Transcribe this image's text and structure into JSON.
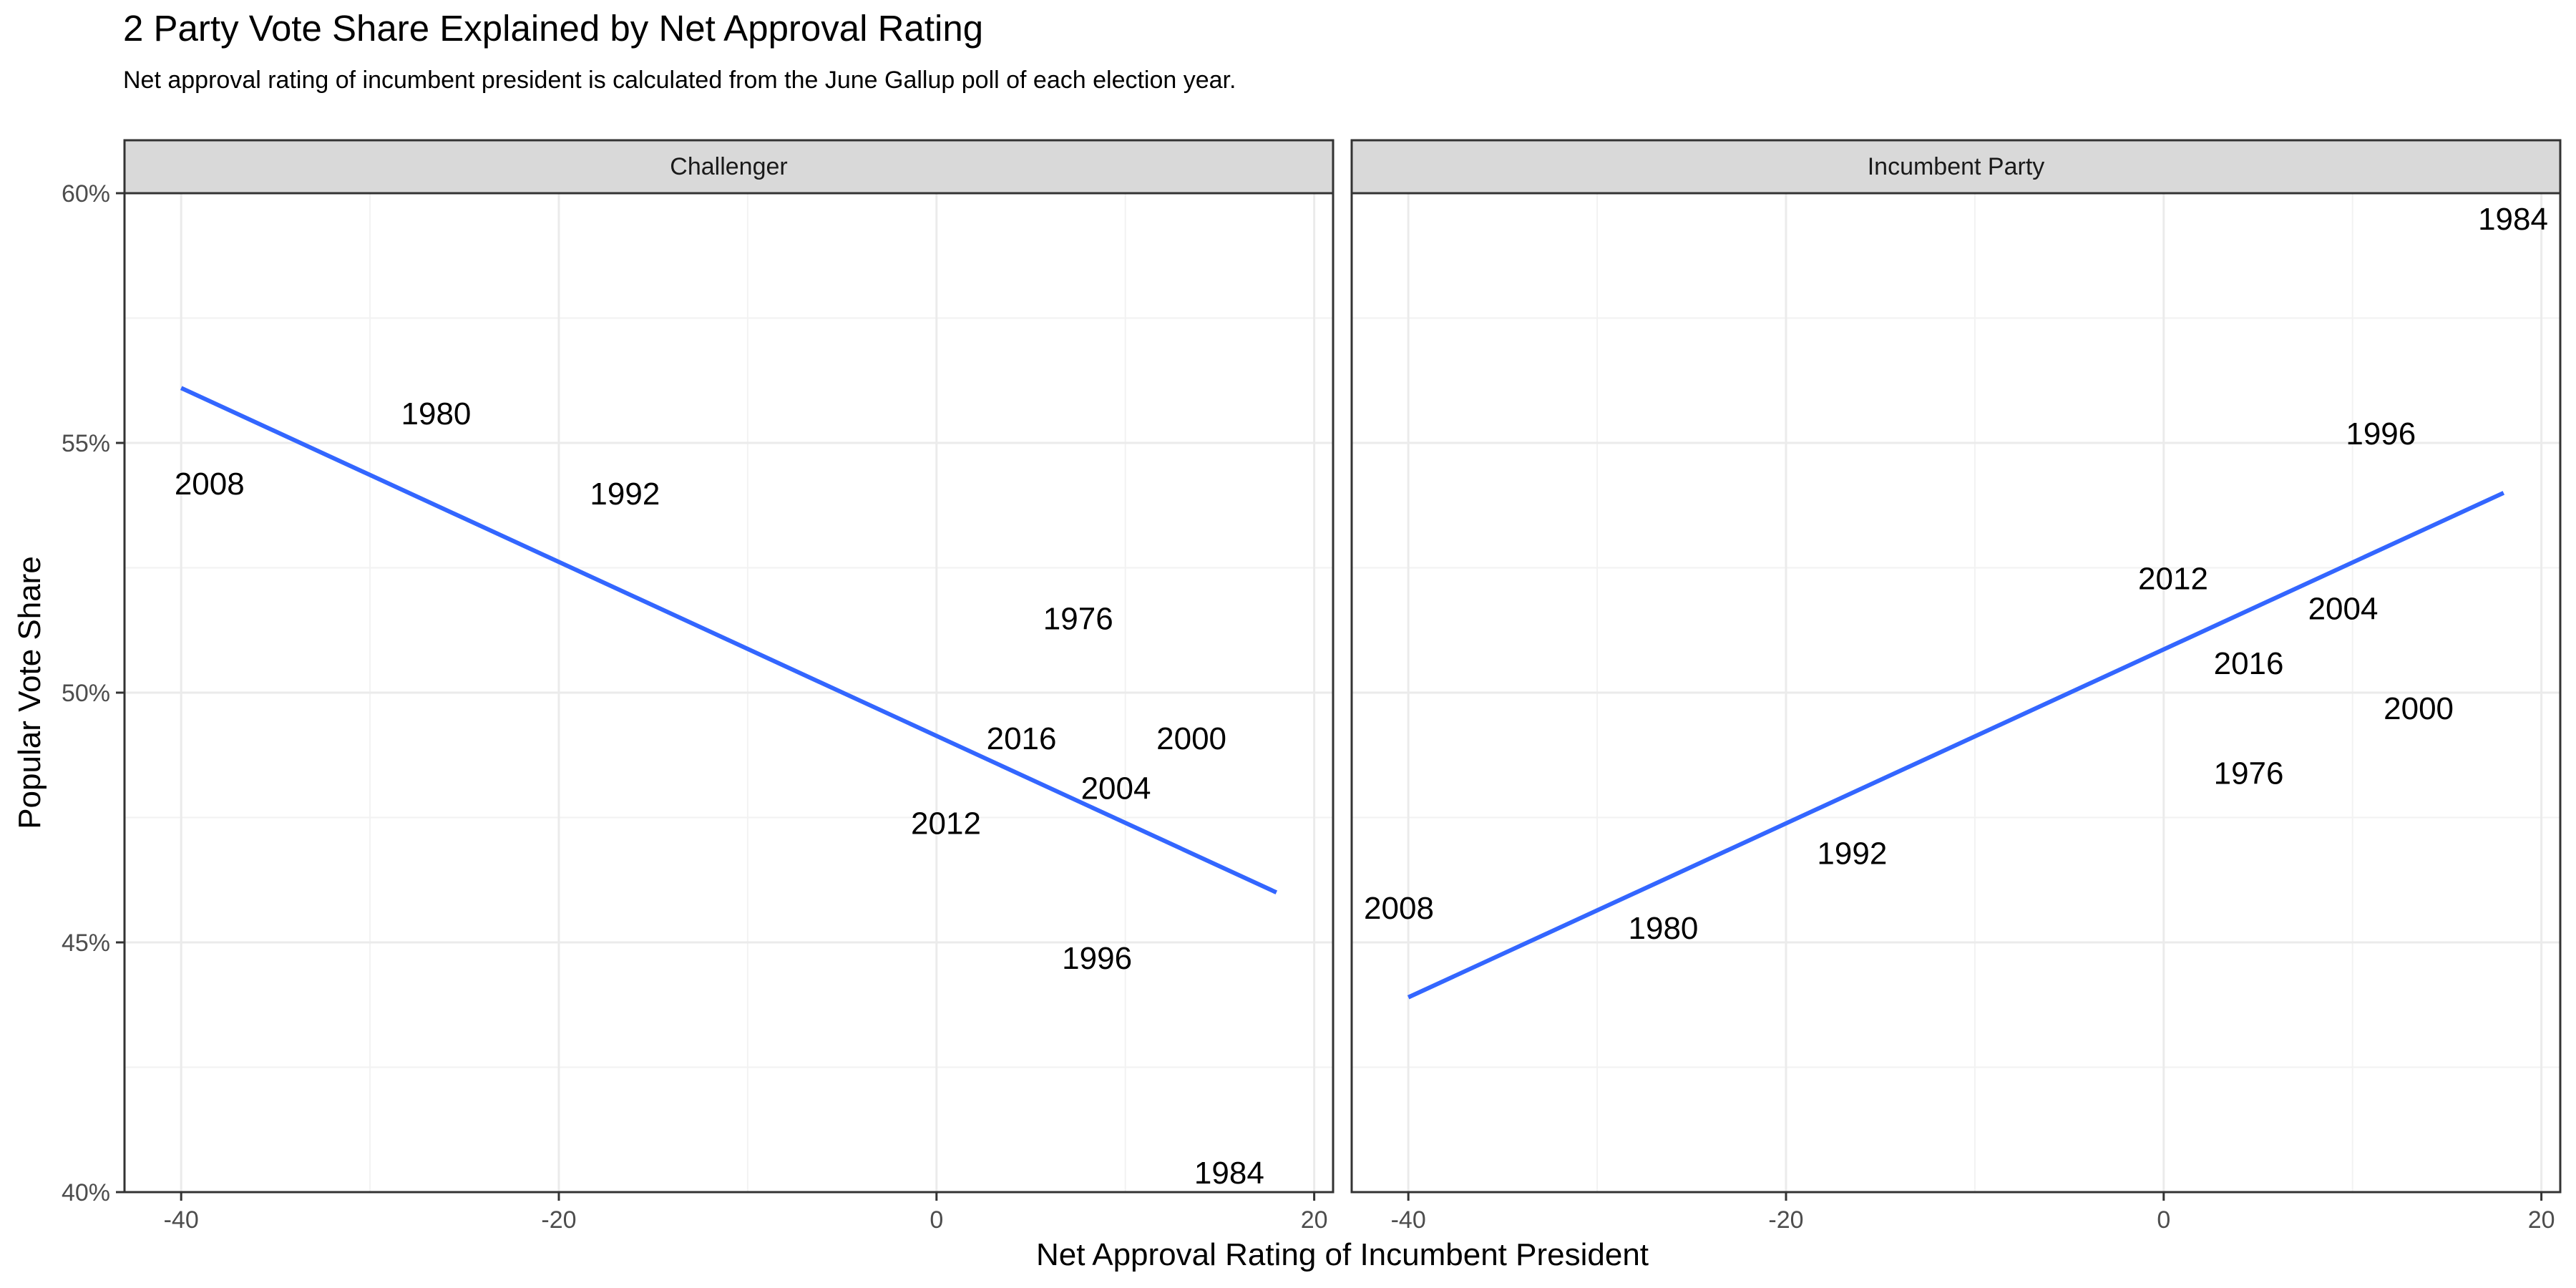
{
  "chart_data": {
    "type": "scatter",
    "title": "2 Party Vote Share Explained by Net Approval Rating",
    "subtitle": "Net approval rating of incumbent president is calculated from the June Gallup poll of each election year.",
    "xlabel": "Net Approval Rating of Incumbent President",
    "ylabel": "Popular Vote Share",
    "xlim": [
      -43,
      21
    ],
    "ylim": [
      40,
      60
    ],
    "x_ticks": [
      -40,
      -20,
      0,
      20
    ],
    "x_tick_labels": [
      "-40",
      "-20",
      "0",
      "20"
    ],
    "y_ticks": [
      40,
      45,
      50,
      55,
      60
    ],
    "y_tick_labels": [
      "40%",
      "45%",
      "50%",
      "55%",
      "60%"
    ],
    "grid": true,
    "label_color": "#000000",
    "line_color": "#3366FF",
    "panels": [
      {
        "strip": "Challenger",
        "points": [
          {
            "label": "2008",
            "x": -38.5,
            "y": 54.2
          },
          {
            "label": "1980",
            "x": -26.5,
            "y": 55.6
          },
          {
            "label": "1992",
            "x": -16.5,
            "y": 54.0
          },
          {
            "label": "1976",
            "x": 7.5,
            "y": 51.5
          },
          {
            "label": "2016",
            "x": 4.5,
            "y": 49.1
          },
          {
            "label": "2000",
            "x": 13.5,
            "y": 49.1
          },
          {
            "label": "2004",
            "x": 9.5,
            "y": 48.1
          },
          {
            "label": "2012",
            "x": 0.5,
            "y": 47.4
          },
          {
            "label": "1996",
            "x": 8.5,
            "y": 44.7
          },
          {
            "label": "1984",
            "x": 15.5,
            "y": 40.4
          }
        ],
        "fit": {
          "x": [
            -40,
            18
          ],
          "y": [
            56.1,
            46.0
          ]
        }
      },
      {
        "strip": "Incumbent Party",
        "points": [
          {
            "label": "1984",
            "x": 18.5,
            "y": 59.5
          },
          {
            "label": "1996",
            "x": 11.5,
            "y": 55.2
          },
          {
            "label": "2012",
            "x": 0.5,
            "y": 52.3
          },
          {
            "label": "2004",
            "x": 9.5,
            "y": 51.7
          },
          {
            "label": "2016",
            "x": 4.5,
            "y": 50.6
          },
          {
            "label": "2000",
            "x": 13.5,
            "y": 49.7
          },
          {
            "label": "1976",
            "x": 4.5,
            "y": 48.4
          },
          {
            "label": "1992",
            "x": -16.5,
            "y": 46.8
          },
          {
            "label": "2008",
            "x": -40.5,
            "y": 45.7
          },
          {
            "label": "1980",
            "x": -26.5,
            "y": 45.3
          }
        ],
        "fit": {
          "x": [
            -40,
            18
          ],
          "y": [
            43.9,
            54.0
          ]
        }
      }
    ]
  }
}
